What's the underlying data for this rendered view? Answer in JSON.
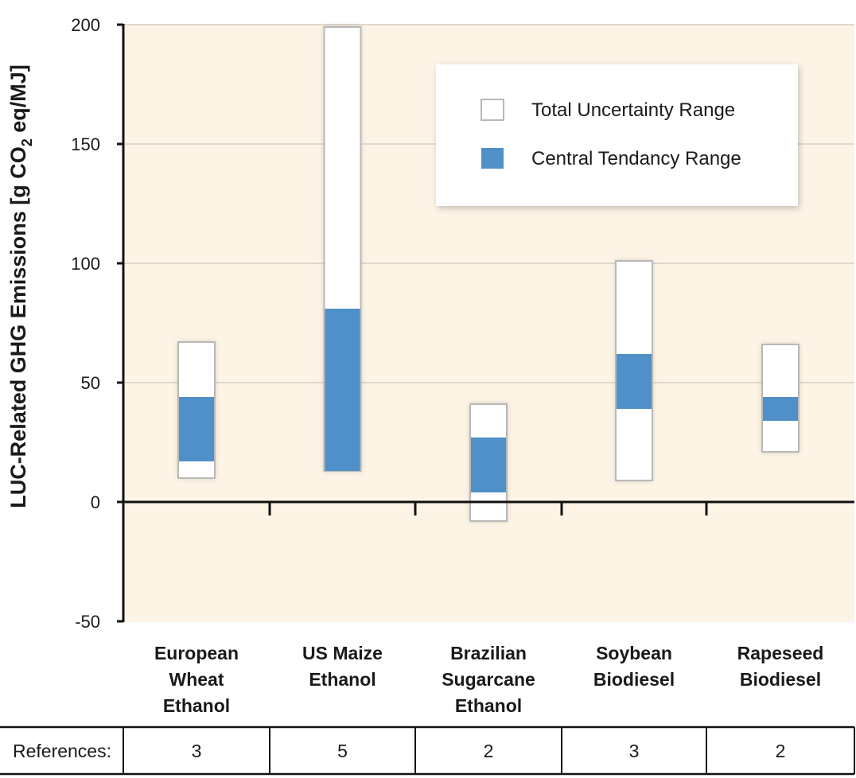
{
  "chart_data": {
    "type": "range-bar",
    "ylabel": "LUC-Related GHG Emissions [g CO2 eq/MJ]",
    "ylabel_parts": {
      "main": "LUC-Related GHG Emissions [g CO",
      "sub": "2",
      "tail": " eq/MJ]"
    },
    "ylim": [
      -50,
      200
    ],
    "yticks": [
      "200",
      "150",
      "100",
      "50",
      "0",
      "-50"
    ],
    "ytick_values": [
      200,
      150,
      100,
      50,
      0,
      -50
    ],
    "grid": true,
    "legend_position": "top-right",
    "legend": [
      {
        "key": "total",
        "label": "Total Uncertainty Range",
        "color": "#ffffff"
      },
      {
        "key": "central",
        "label": "Central Tendancy Range",
        "color": "#5090c8"
      }
    ],
    "categories": [
      {
        "label_lines": [
          "European",
          "Wheat",
          "Ethanol"
        ],
        "total": [
          10,
          67
        ],
        "central": [
          17,
          44
        ],
        "references": "3"
      },
      {
        "label_lines": [
          "US Maize",
          "Ethanol"
        ],
        "total": [
          13,
          199
        ],
        "central": [
          13,
          81
        ],
        "references": "5"
      },
      {
        "label_lines": [
          "Brazilian",
          "Sugarcane",
          "Ethanol"
        ],
        "total": [
          -8,
          41
        ],
        "central": [
          4,
          27
        ],
        "references": "2"
      },
      {
        "label_lines": [
          "Soybean",
          "Biodiesel"
        ],
        "total": [
          9,
          101
        ],
        "central": [
          39,
          62
        ],
        "references": "3"
      },
      {
        "label_lines": [
          "Rapeseed",
          "Biodiesel"
        ],
        "total": [
          21,
          66
        ],
        "central": [
          34,
          44
        ],
        "references": "2"
      }
    ],
    "references_label": "References:"
  },
  "colors": {
    "plot_bg": "#fdf4e6",
    "central": "#5090c8",
    "total": "#ffffff",
    "bar_border": "#b8b8b8",
    "grid": "#d6cfc4",
    "axis": "#111111"
  }
}
